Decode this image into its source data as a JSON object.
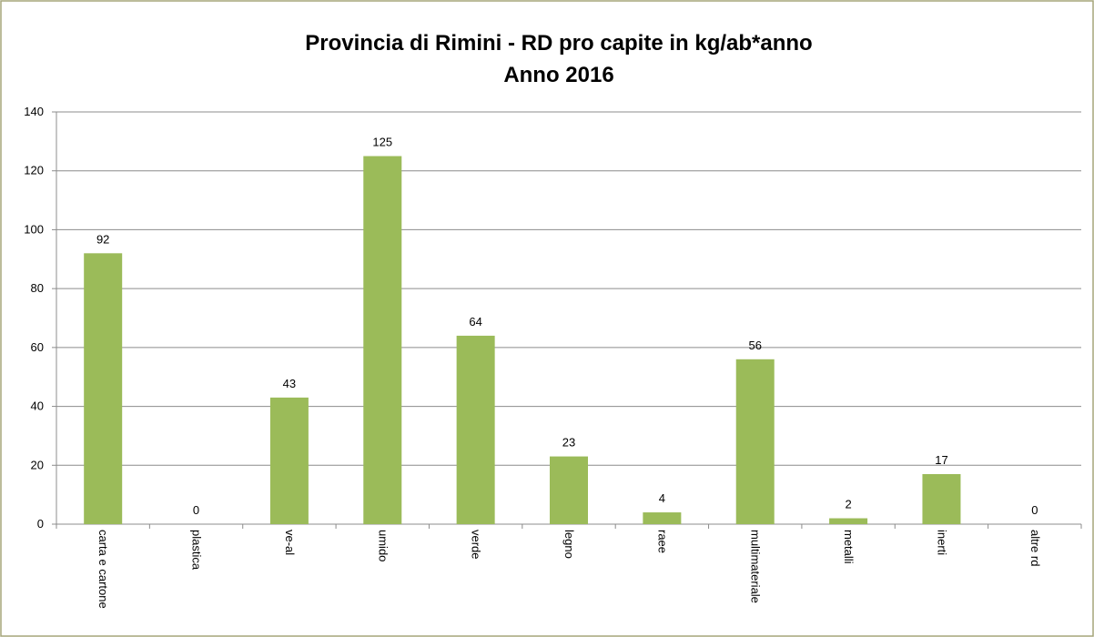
{
  "chart_data": {
    "type": "bar",
    "title": "Provincia di Rimini - RD pro capite in kg/ab*anno",
    "subtitle": "Anno 2016",
    "categories": [
      "carta e cartone",
      "plastica",
      "ve-al",
      "umido",
      "verde",
      "legno",
      "raee",
      "multimateriale",
      "metalli",
      "inerti",
      "altre rd"
    ],
    "values": [
      92,
      0,
      43,
      125,
      64,
      23,
      4,
      56,
      2,
      17,
      0
    ],
    "color": "#9bbb59",
    "ylim": [
      0,
      140
    ],
    "yticks": [
      0,
      20,
      40,
      60,
      80,
      100,
      120,
      140
    ],
    "grid": true
  }
}
